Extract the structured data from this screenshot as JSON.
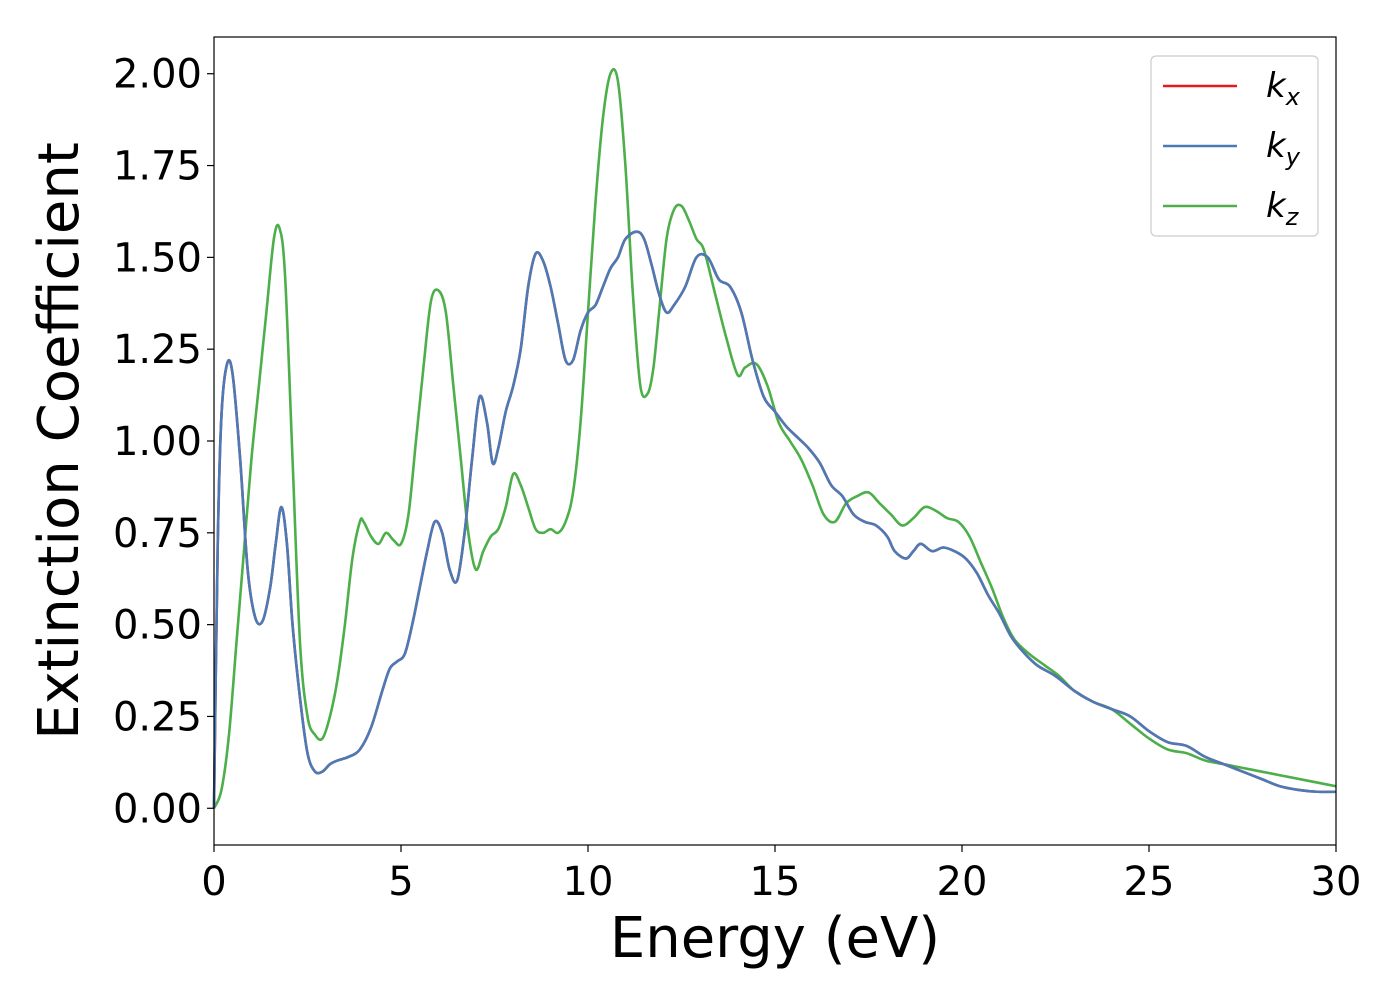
{
  "chart_data": {
    "type": "line",
    "title": "",
    "xlabel": "Energy (eV)",
    "ylabel": "Extinction Coefficient",
    "xlim": [
      0,
      30
    ],
    "ylim": [
      -0.1,
      2.1
    ],
    "xticks": [
      "0",
      "5",
      "10",
      "15",
      "20",
      "25",
      "30"
    ],
    "yticks": [
      "0.00",
      "0.25",
      "0.50",
      "0.75",
      "1.00",
      "1.25",
      "1.50",
      "1.75",
      "2.00"
    ],
    "grid": false,
    "legend_position": "top-right",
    "series": [
      {
        "name": "k_x",
        "legend_base": "k",
        "legend_sub": "x",
        "color": "#e41a1c",
        "x": [
          0,
          0.1,
          0.2,
          0.35,
          0.5,
          0.7,
          0.9,
          1.1,
          1.3,
          1.5,
          1.65,
          1.8,
          1.95,
          2.1,
          2.3,
          2.5,
          2.7,
          2.9,
          3.1,
          3.3,
          3.6,
          3.9,
          4.2,
          4.5,
          4.7,
          4.9,
          5.1,
          5.3,
          5.5,
          5.7,
          5.9,
          6.1,
          6.3,
          6.5,
          6.7,
          6.9,
          7.1,
          7.3,
          7.45,
          7.6,
          7.8,
          8.0,
          8.2,
          8.4,
          8.6,
          8.8,
          9.0,
          9.2,
          9.4,
          9.6,
          9.8,
          10.0,
          10.2,
          10.4,
          10.6,
          10.8,
          11.0,
          11.3,
          11.5,
          11.7,
          11.9,
          12.1,
          12.3,
          12.6,
          12.9,
          13.2,
          13.5,
          13.8,
          14.1,
          14.4,
          14.7,
          15.0,
          15.3,
          15.6,
          15.9,
          16.2,
          16.5,
          16.8,
          17.1,
          17.4,
          17.7,
          18.0,
          18.2,
          18.5,
          18.7,
          18.9,
          19.2,
          19.5,
          19.8,
          20.1,
          20.4,
          20.7,
          21.0,
          21.3,
          21.6,
          22.0,
          22.5,
          23.0,
          23.5,
          24.0,
          24.5,
          25.0,
          25.5,
          26.0,
          26.5,
          27.0,
          27.5,
          28.0,
          28.5,
          29.0,
          29.5,
          30.0
        ],
        "values": [
          0.0,
          0.72,
          1.07,
          1.21,
          1.18,
          0.95,
          0.65,
          0.52,
          0.51,
          0.6,
          0.72,
          0.82,
          0.72,
          0.5,
          0.3,
          0.15,
          0.1,
          0.1,
          0.12,
          0.13,
          0.14,
          0.16,
          0.22,
          0.32,
          0.38,
          0.4,
          0.42,
          0.5,
          0.6,
          0.7,
          0.78,
          0.75,
          0.65,
          0.62,
          0.75,
          0.95,
          1.12,
          1.05,
          0.94,
          0.98,
          1.08,
          1.15,
          1.25,
          1.42,
          1.51,
          1.49,
          1.42,
          1.32,
          1.22,
          1.22,
          1.3,
          1.35,
          1.37,
          1.42,
          1.47,
          1.5,
          1.55,
          1.57,
          1.55,
          1.48,
          1.4,
          1.35,
          1.37,
          1.42,
          1.5,
          1.5,
          1.44,
          1.42,
          1.35,
          1.22,
          1.12,
          1.08,
          1.04,
          1.01,
          0.98,
          0.94,
          0.88,
          0.85,
          0.8,
          0.78,
          0.77,
          0.74,
          0.7,
          0.68,
          0.7,
          0.72,
          0.7,
          0.71,
          0.7,
          0.68,
          0.64,
          0.58,
          0.53,
          0.47,
          0.43,
          0.39,
          0.36,
          0.32,
          0.29,
          0.27,
          0.25,
          0.21,
          0.18,
          0.17,
          0.14,
          0.12,
          0.1,
          0.08,
          0.06,
          0.05,
          0.045,
          0.045
        ]
      },
      {
        "name": "k_y",
        "legend_base": "k",
        "legend_sub": "y",
        "color": "#4a7bb7",
        "x": [
          0,
          0.1,
          0.2,
          0.35,
          0.5,
          0.7,
          0.9,
          1.1,
          1.3,
          1.5,
          1.65,
          1.8,
          1.95,
          2.1,
          2.3,
          2.5,
          2.7,
          2.9,
          3.1,
          3.3,
          3.6,
          3.9,
          4.2,
          4.5,
          4.7,
          4.9,
          5.1,
          5.3,
          5.5,
          5.7,
          5.9,
          6.1,
          6.3,
          6.5,
          6.7,
          6.9,
          7.1,
          7.3,
          7.45,
          7.6,
          7.8,
          8.0,
          8.2,
          8.4,
          8.6,
          8.8,
          9.0,
          9.2,
          9.4,
          9.6,
          9.8,
          10.0,
          10.2,
          10.4,
          10.6,
          10.8,
          11.0,
          11.3,
          11.5,
          11.7,
          11.9,
          12.1,
          12.3,
          12.6,
          12.9,
          13.2,
          13.5,
          13.8,
          14.1,
          14.4,
          14.7,
          15.0,
          15.3,
          15.6,
          15.9,
          16.2,
          16.5,
          16.8,
          17.1,
          17.4,
          17.7,
          18.0,
          18.2,
          18.5,
          18.7,
          18.9,
          19.2,
          19.5,
          19.8,
          20.1,
          20.4,
          20.7,
          21.0,
          21.3,
          21.6,
          22.0,
          22.5,
          23.0,
          23.5,
          24.0,
          24.5,
          25.0,
          25.5,
          26.0,
          26.5,
          27.0,
          27.5,
          28.0,
          28.5,
          29.0,
          29.5,
          30.0
        ],
        "values": [
          0.0,
          0.72,
          1.07,
          1.21,
          1.18,
          0.95,
          0.65,
          0.52,
          0.51,
          0.6,
          0.72,
          0.82,
          0.72,
          0.5,
          0.3,
          0.15,
          0.1,
          0.1,
          0.12,
          0.13,
          0.14,
          0.16,
          0.22,
          0.32,
          0.38,
          0.4,
          0.42,
          0.5,
          0.6,
          0.7,
          0.78,
          0.75,
          0.65,
          0.62,
          0.75,
          0.95,
          1.12,
          1.05,
          0.94,
          0.98,
          1.08,
          1.15,
          1.25,
          1.42,
          1.51,
          1.49,
          1.42,
          1.32,
          1.22,
          1.22,
          1.3,
          1.35,
          1.37,
          1.42,
          1.47,
          1.5,
          1.55,
          1.57,
          1.55,
          1.48,
          1.4,
          1.35,
          1.37,
          1.42,
          1.5,
          1.5,
          1.44,
          1.42,
          1.35,
          1.22,
          1.12,
          1.08,
          1.04,
          1.01,
          0.98,
          0.94,
          0.88,
          0.85,
          0.8,
          0.78,
          0.77,
          0.74,
          0.7,
          0.68,
          0.7,
          0.72,
          0.7,
          0.71,
          0.7,
          0.68,
          0.64,
          0.58,
          0.53,
          0.47,
          0.43,
          0.39,
          0.36,
          0.32,
          0.29,
          0.27,
          0.25,
          0.21,
          0.18,
          0.17,
          0.14,
          0.12,
          0.1,
          0.08,
          0.06,
          0.05,
          0.045,
          0.045
        ]
      },
      {
        "name": "k_z",
        "legend_base": "k",
        "legend_sub": "z",
        "color": "#4daf4a",
        "x": [
          0,
          0.2,
          0.4,
          0.6,
          0.8,
          1.0,
          1.2,
          1.4,
          1.6,
          1.75,
          1.9,
          2.1,
          2.3,
          2.5,
          2.7,
          2.9,
          3.1,
          3.3,
          3.5,
          3.7,
          3.9,
          4.0,
          4.2,
          4.4,
          4.6,
          4.8,
          5.0,
          5.2,
          5.4,
          5.6,
          5.8,
          6.0,
          6.2,
          6.4,
          6.6,
          6.8,
          7.0,
          7.2,
          7.4,
          7.6,
          7.8,
          8.0,
          8.2,
          8.4,
          8.6,
          8.8,
          9.0,
          9.2,
          9.4,
          9.6,
          9.8,
          10.0,
          10.2,
          10.4,
          10.6,
          10.8,
          11.0,
          11.2,
          11.4,
          11.6,
          11.75,
          11.9,
          12.1,
          12.3,
          12.5,
          12.7,
          12.9,
          13.1,
          13.4,
          13.7,
          14.0,
          14.2,
          14.5,
          14.8,
          15.1,
          15.4,
          15.7,
          16.0,
          16.3,
          16.6,
          16.9,
          17.2,
          17.5,
          17.8,
          18.1,
          18.4,
          18.7,
          19.0,
          19.3,
          19.6,
          19.9,
          20.2,
          20.5,
          20.8,
          21.1,
          21.4,
          21.8,
          22.2,
          22.6,
          23.0,
          23.5,
          24.0,
          24.5,
          25.0,
          25.5,
          26.0,
          26.5,
          27.0,
          27.5,
          28.0,
          28.5,
          29.0,
          29.5,
          30.0
        ],
        "values": [
          0.0,
          0.05,
          0.2,
          0.45,
          0.7,
          0.95,
          1.15,
          1.35,
          1.55,
          1.58,
          1.45,
          0.95,
          0.45,
          0.25,
          0.2,
          0.19,
          0.25,
          0.35,
          0.5,
          0.68,
          0.78,
          0.78,
          0.74,
          0.72,
          0.75,
          0.73,
          0.72,
          0.8,
          1.0,
          1.2,
          1.38,
          1.41,
          1.35,
          1.15,
          0.95,
          0.75,
          0.65,
          0.7,
          0.74,
          0.76,
          0.82,
          0.91,
          0.88,
          0.82,
          0.76,
          0.75,
          0.76,
          0.75,
          0.78,
          0.86,
          1.05,
          1.35,
          1.65,
          1.88,
          2.0,
          1.98,
          1.75,
          1.4,
          1.15,
          1.13,
          1.2,
          1.35,
          1.55,
          1.63,
          1.64,
          1.6,
          1.55,
          1.52,
          1.4,
          1.28,
          1.18,
          1.2,
          1.21,
          1.15,
          1.05,
          1.0,
          0.95,
          0.88,
          0.8,
          0.78,
          0.83,
          0.85,
          0.86,
          0.83,
          0.8,
          0.77,
          0.79,
          0.82,
          0.81,
          0.79,
          0.78,
          0.74,
          0.67,
          0.6,
          0.52,
          0.46,
          0.42,
          0.39,
          0.36,
          0.32,
          0.29,
          0.27,
          0.23,
          0.19,
          0.16,
          0.15,
          0.13,
          0.12,
          0.11,
          0.1,
          0.09,
          0.08,
          0.07,
          0.06
        ]
      }
    ]
  }
}
